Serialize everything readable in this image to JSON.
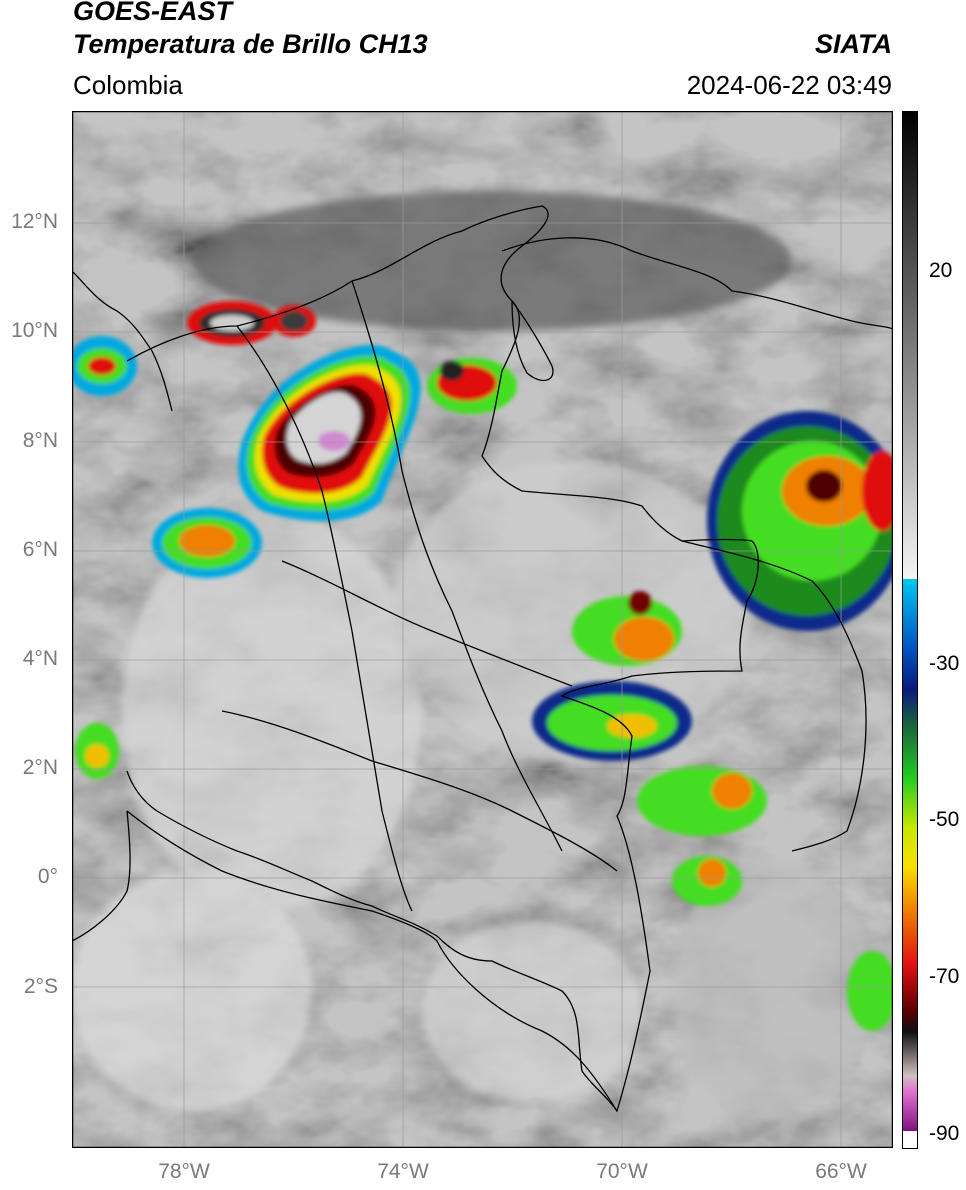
{
  "header": {
    "satellite": "GOES-EAST",
    "product": "Temperatura de Brillo CH13",
    "region": "Colombia",
    "organization": "SIATA",
    "datetime": "2024-06-22 03:49"
  },
  "axes": {
    "lat_labels": [
      "12°N",
      "10°N",
      "8°N",
      "6°N",
      "4°N",
      "2°N",
      "0°",
      "2°S"
    ],
    "lon_labels": [
      "78°W",
      "74°W",
      "70°W",
      "66°W"
    ]
  },
  "colorbar": {
    "tick_labels": [
      "20",
      "-30",
      "-50",
      "-70",
      "-90"
    ]
  },
  "colors": {
    "border": "#000000",
    "graticule": "#9a9a9a",
    "axis_label": "#7a7a7a",
    "convective_palette": [
      "#00a8e0",
      "#0a2a8a",
      "#1a8a1a",
      "#44dd22",
      "#f0e000",
      "#f08000",
      "#e01010",
      "#700000",
      "#101010",
      "#d08ad0",
      "#8a1a8a"
    ]
  }
}
